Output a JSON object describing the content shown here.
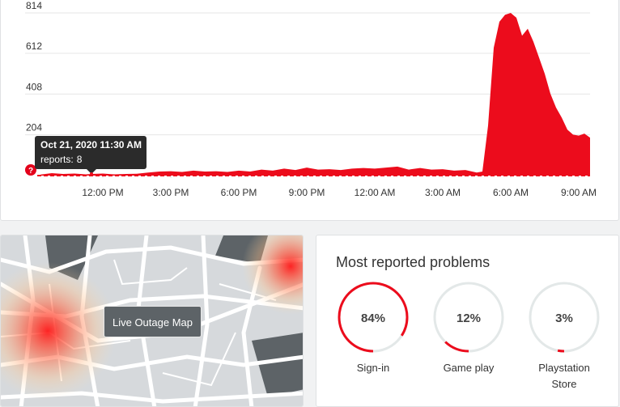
{
  "chart_data": {
    "type": "area",
    "color": "#ec0c1c",
    "x": [
      9.25,
      9.75,
      10.25,
      10.75,
      11.25,
      11.5,
      12,
      12.5,
      13,
      13.5,
      14,
      14.5,
      15,
      15.5,
      16,
      16.5,
      17,
      17.5,
      18,
      18.5,
      19,
      19.5,
      20,
      20.5,
      21,
      21.5,
      22,
      22.5,
      23,
      23.5,
      24,
      24.5,
      25,
      25.5,
      26,
      26.5,
      27,
      27.5,
      28,
      28.5,
      28.75,
      29,
      29.25,
      29.5,
      29.75,
      30,
      30.25,
      30.5,
      30.75,
      31,
      31.25,
      31.5,
      31.75,
      32,
      32.25,
      32.5,
      32.75,
      33,
      33.25,
      33.5
    ],
    "values": [
      5,
      12,
      8,
      10,
      6,
      8,
      10,
      6,
      8,
      9,
      15,
      20,
      22,
      18,
      25,
      20,
      22,
      18,
      25,
      20,
      30,
      25,
      35,
      28,
      40,
      30,
      32,
      28,
      35,
      38,
      35,
      40,
      45,
      30,
      38,
      30,
      32,
      25,
      28,
      15,
      20,
      250,
      640,
      770,
      805,
      814,
      790,
      700,
      735,
      670,
      590,
      510,
      410,
      340,
      290,
      230,
      205,
      200,
      210,
      190
    ],
    "xlim": [
      9.25,
      33.5
    ],
    "xticks": [
      {
        "value": 12,
        "label": "12:00 PM"
      },
      {
        "value": 15,
        "label": "3:00 PM"
      },
      {
        "value": 18,
        "label": "6:00 PM"
      },
      {
        "value": 21,
        "label": "9:00 PM"
      },
      {
        "value": 24,
        "label": "12:00 AM"
      },
      {
        "value": 27,
        "label": "3:00 AM"
      },
      {
        "value": 30,
        "label": "6:00 AM"
      },
      {
        "value": 33,
        "label": "9:00 AM"
      }
    ],
    "ylim": [
      0,
      814
    ],
    "yticks": [
      204,
      408,
      612,
      814
    ],
    "grid": true,
    "tooltip": {
      "title": "Oct 21, 2020 11:30 AM",
      "label": "reports:",
      "value": 8,
      "x": 11.5
    }
  },
  "map": {
    "button": "Live Outage Map"
  },
  "problems": {
    "title": "Most reported problems",
    "items": [
      {
        "label": "Sign-in",
        "value": 84,
        "value_label": "84%"
      },
      {
        "label": "Game play",
        "value": 12,
        "value_label": "12%"
      },
      {
        "label": "Playstation Store",
        "value": 3,
        "value_label": "3%"
      }
    ]
  }
}
